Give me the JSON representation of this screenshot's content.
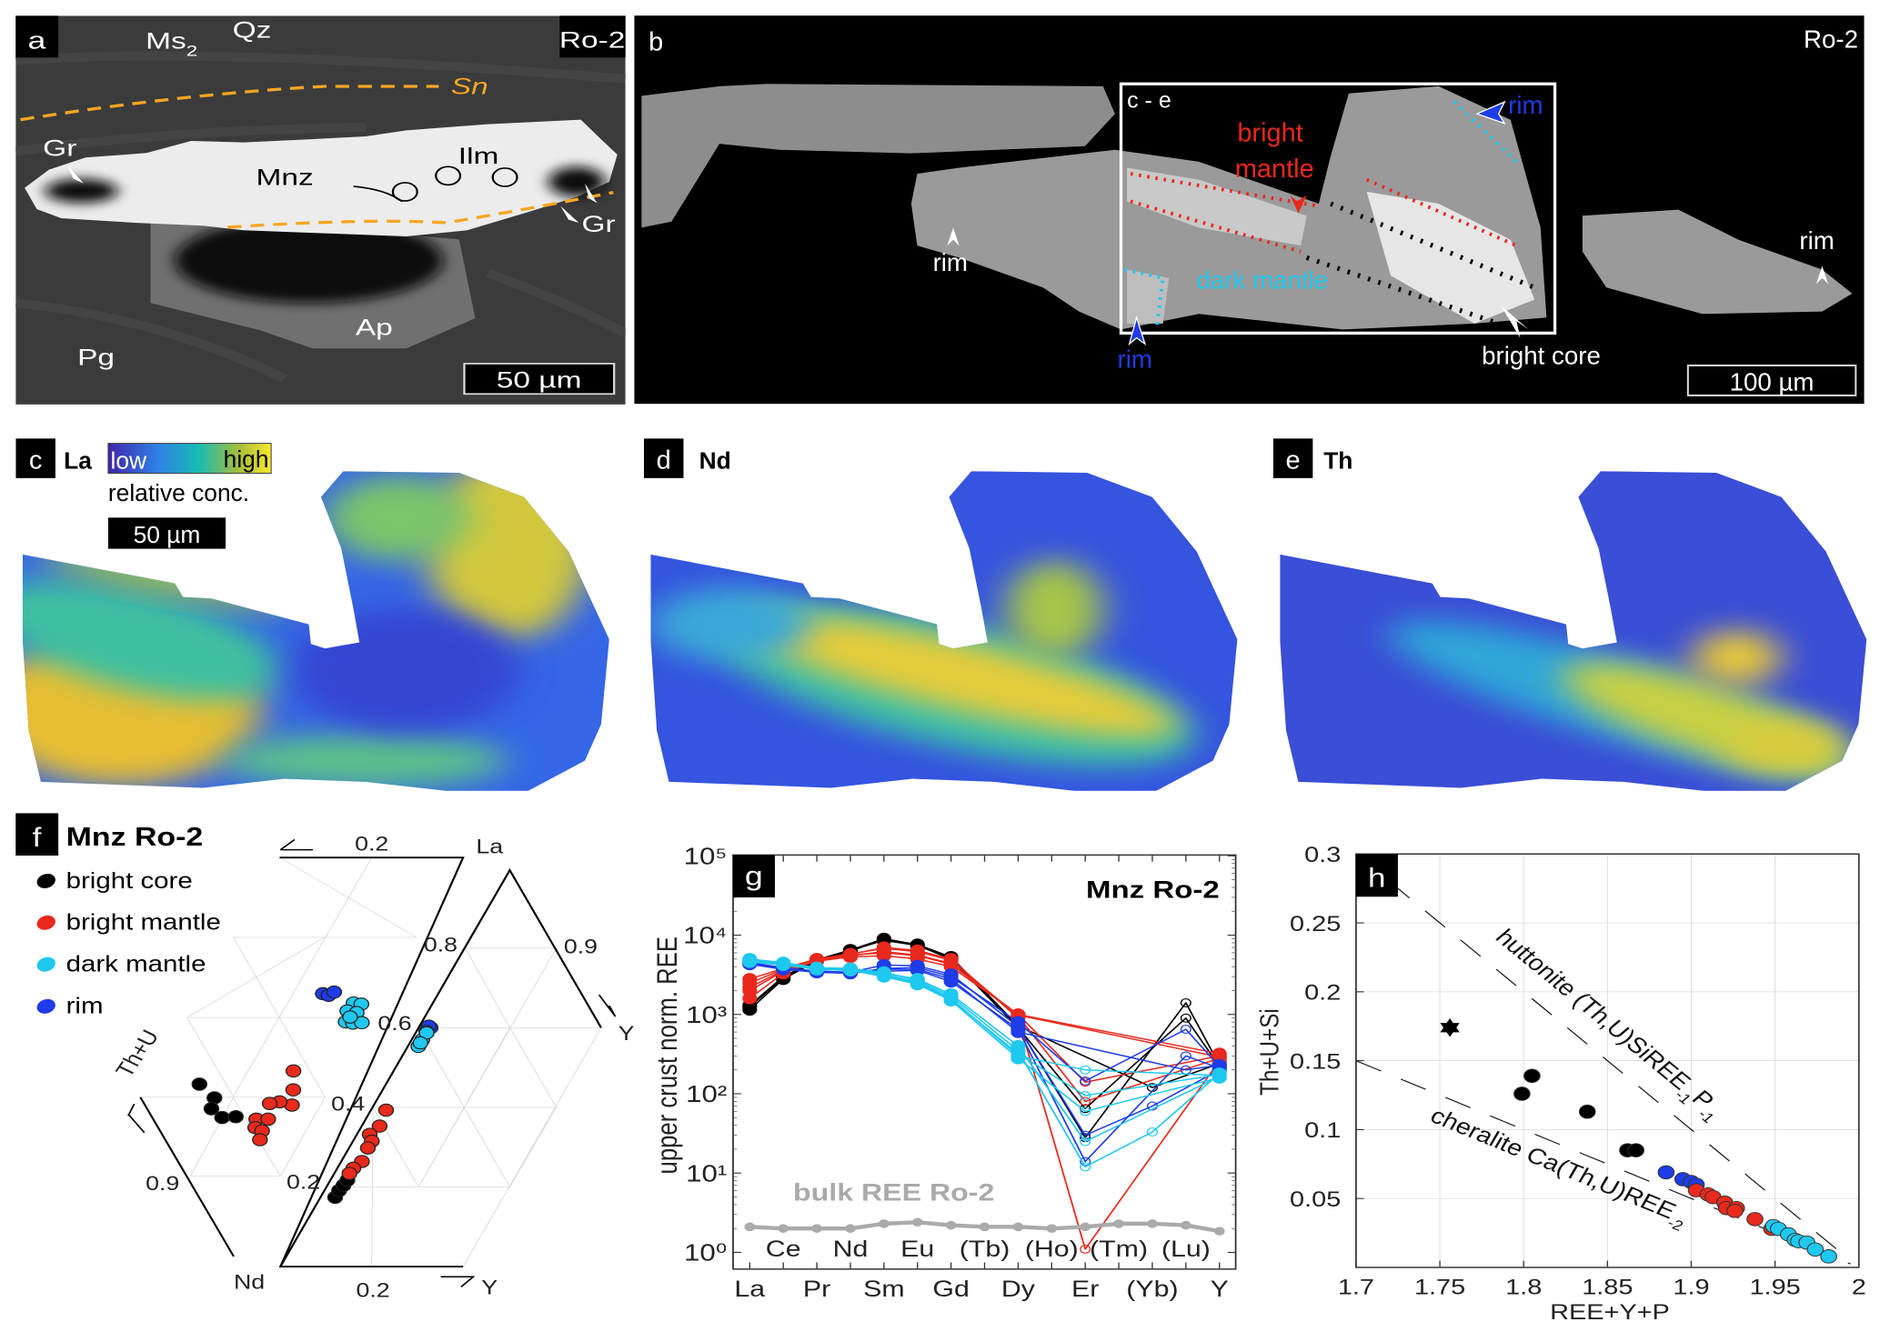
{
  "panel_a": {
    "label": "a",
    "sample": "Ro-2",
    "minerals": {
      "ms": "Ms",
      "ms_sub": "2",
      "qz": "Qz",
      "sn": "Sn",
      "gr_left": "Gr",
      "mnz": "Mnz",
      "ilm": "Ilm",
      "gr_right": "Gr",
      "ap": "Ap",
      "pg": "Pg"
    },
    "scale_bar": "50 µm",
    "colors": {
      "foliation": "#f5a623"
    }
  },
  "panel_b": {
    "label": "b",
    "sample": "Ro-2",
    "inset_label": "c - e",
    "annotations": {
      "bright1": "bright",
      "bright2": "mantle",
      "rim_top": "rim",
      "rim_left": "rim",
      "dark_mantle": "dark mantle",
      "rim_bottom": "rim",
      "bright_core": "bright core",
      "rim_right": "rim"
    },
    "scale_bar": "100 µm",
    "colors": {
      "bright_mantle": "#e8291c",
      "dark_mantle": "#1ec8ef",
      "rim": "#1e3ce8"
    }
  },
  "maps": {
    "c": {
      "label": "c",
      "element": "La"
    },
    "d": {
      "label": "d",
      "element": "Nd"
    },
    "e": {
      "label": "e",
      "element": "Th"
    },
    "colorbar": {
      "low": "low",
      "high": "high",
      "caption": "relative conc."
    },
    "scale_bar": "50 µm"
  },
  "chart_data": [
    {
      "id": "f",
      "type": "scatter",
      "subtype": "ternary",
      "label": "f",
      "title": "Mnz Ro-2",
      "legend": [
        {
          "label": "bright core",
          "color": "#000000"
        },
        {
          "label": "bright mantle",
          "color": "#e8291c"
        },
        {
          "label": "dark mantle",
          "color": "#1ec8ef"
        },
        {
          "label": "rim",
          "color": "#1e3ce8"
        }
      ],
      "axis_labels": {
        "th_u": "Th+U",
        "la": "La",
        "nd": "Nd",
        "y_right": "Y",
        "y_bottom": "Y"
      },
      "tick_labels": {
        "top": "0.2",
        "r08": "0.8",
        "r06": "0.6",
        "r04": "0.4",
        "r02": "0.2",
        "left09": "0.9",
        "right09": "0.9",
        "bottom": "0.2"
      },
      "left_diagram": {
        "apices": [
          "Th+U",
          "La",
          "Nd"
        ],
        "point_fields": [
          "La",
          "Th+U"
        ],
        "groups": {
          "bright core": [
            [
              0.435,
              0.354
            ],
            [
              0.401,
              0.308
            ],
            [
              0.374,
              0.304
            ],
            [
              0.352,
              0.272
            ],
            [
              0.354,
              0.243
            ]
          ],
          "bright mantle": [
            [
              0.468,
              0.162
            ],
            [
              0.421,
              0.144
            ],
            [
              0.383,
              0.132
            ],
            [
              0.391,
              0.162
            ],
            [
              0.387,
              0.182
            ],
            [
              0.348,
              0.196
            ],
            [
              0.348,
              0.17
            ],
            [
              0.327,
              0.19
            ],
            [
              0.319,
              0.172
            ],
            [
              0.297,
              0.168
            ]
          ],
          "rim": [
            [
              0.66,
              0.173
            ],
            [
              0.656,
              0.159
            ],
            [
              0.664,
              0.15
            ]
          ],
          "dark mantle": [
            [
              0.637,
              0.097
            ],
            [
              0.634,
              0.079
            ],
            [
              0.617,
              0.103
            ],
            [
              0.613,
              0.081
            ],
            [
              0.59,
              0.096
            ],
            [
              0.587,
              0.079
            ],
            [
              0.588,
              0.06
            ],
            [
              0.602,
              0.091
            ]
          ]
        }
      },
      "right_diagram": {
        "apices": [
          "La",
          "Nd",
          "Y"
        ],
        "point_fields": [
          "La",
          "Y"
        ],
        "groups": {
          "bright core": [
            [
              0.174,
              0.032
            ],
            [
              0.191,
              0.032
            ],
            [
              0.204,
              0.035
            ],
            [
              0.217,
              0.037
            ]
          ],
          "bright mantle": [
            [
              0.393,
              0.033
            ],
            [
              0.353,
              0.039
            ],
            [
              0.332,
              0.028
            ],
            [
              0.315,
              0.041
            ],
            [
              0.298,
              0.041
            ],
            [
              0.264,
              0.045
            ],
            [
              0.247,
              0.035
            ],
            [
              0.234,
              0.033
            ]
          ],
          "dark mantle": [
            [
              0.553,
              0.023
            ],
            [
              0.57,
              0.023
            ],
            [
              0.587,
              0.024
            ],
            [
              0.562,
              0.023
            ]
          ],
          "rim": [
            [
              0.6,
              0.026
            ],
            [
              0.604,
              0.02
            ],
            [
              0.591,
              0.021
            ]
          ]
        }
      }
    },
    {
      "id": "g",
      "type": "line",
      "label": "g",
      "title": "Mnz Ro-2",
      "ylabel": "upper crust norm. REE",
      "yscale": "log",
      "ylim": [
        0.6,
        100000
      ],
      "categories": [
        "La",
        "Ce",
        "Pr",
        "Nd",
        "Sm",
        "Eu",
        "Gd",
        "Tb",
        "Dy",
        "Ho",
        "Er",
        "Tm",
        "Yb",
        "Lu",
        "Y"
      ],
      "xtick_labels_outer": [
        "La",
        "Pr",
        "Sm",
        "Gd",
        "Dy",
        "Er",
        "(Yb)",
        "Y"
      ],
      "xtick_labels_inner": [
        "Ce",
        "Nd",
        "Eu",
        "(Tb)",
        "(Ho)",
        "(Tm)",
        "(Lu)"
      ],
      "ytick_labels": [
        "10⁰",
        "10¹",
        "10²",
        "10³",
        "10⁴",
        "10⁵"
      ],
      "open_marker_elements": [
        "Er",
        "Tm",
        "Yb",
        "Lu"
      ],
      "bulk_label": "bulk REE Ro-2",
      "series": [
        {
          "group": "bright core",
          "color": "#000000",
          "values": [
            1150,
            2800,
            4700,
            6300,
            8800,
            7500,
            5200,
            null,
            700,
            null,
            28,
            null,
            null,
            1400,
            230
          ]
        },
        {
          "group": "bright core",
          "color": "#000000",
          "values": [
            1250,
            2900,
            4800,
            6400,
            8600,
            7400,
            5000,
            null,
            680,
            null,
            65,
            null,
            null,
            900,
            220
          ]
        },
        {
          "group": "bright core",
          "color": "#000000",
          "values": [
            1300,
            3000,
            4900,
            6500,
            9000,
            7600,
            5300,
            null,
            720,
            null,
            null,
            null,
            120,
            null,
            240
          ]
        },
        {
          "group": "bright mantle",
          "color": "#e8291c",
          "values": [
            1600,
            3300,
            4800,
            5600,
            6000,
            5500,
            4300,
            null,
            1000,
            null,
            140,
            null,
            null,
            null,
            300
          ]
        },
        {
          "group": "bright mantle",
          "color": "#e8291c",
          "values": [
            2200,
            3600,
            5000,
            5800,
            6800,
            6200,
            4800,
            null,
            950,
            null,
            80,
            null,
            null,
            null,
            280
          ]
        },
        {
          "group": "bright mantle",
          "color": "#e8291c",
          "values": [
            2800,
            3800,
            5000,
            5700,
            7000,
            6400,
            5000,
            null,
            900,
            null,
            1.1,
            null,
            null,
            null,
            260
          ]
        },
        {
          "group": "bright mantle",
          "color": "#e8291c",
          "values": [
            2000,
            3500,
            4700,
            5300,
            5500,
            5000,
            4000,
            null,
            1000,
            null,
            null,
            null,
            null,
            null,
            320
          ]
        },
        {
          "group": "bright mantle",
          "color": "#e8291c",
          "values": [
            2500,
            3700,
            4900,
            5500,
            6200,
            5600,
            4400,
            null,
            980,
            null,
            null,
            null,
            null,
            null,
            290
          ]
        },
        {
          "group": "rim",
          "color": "#1e3ce8",
          "values": [
            4400,
            3800,
            3400,
            3300,
            3800,
            3900,
            3000,
            null,
            800,
            null,
            145,
            null,
            null,
            650,
            220
          ]
        },
        {
          "group": "rim",
          "color": "#1e3ce8",
          "values": [
            4500,
            3900,
            3500,
            3400,
            4200,
            4100,
            3200,
            null,
            700,
            null,
            30,
            null,
            70,
            null,
            200
          ]
        },
        {
          "group": "rim",
          "color": "#1e3ce8",
          "values": [
            4300,
            3700,
            3400,
            3350,
            3500,
            3600,
            2600,
            null,
            650,
            null,
            14,
            null,
            null,
            300,
            210
          ]
        },
        {
          "group": "rim",
          "color": "#1e3ce8",
          "values": [
            4600,
            3800,
            3500,
            3400,
            3700,
            3700,
            2800,
            null,
            600,
            null,
            null,
            null,
            null,
            200,
            230
          ]
        },
        {
          "group": "dark mantle",
          "color": "#1ec8ef",
          "values": [
            4800,
            4400,
            3800,
            3700,
            3200,
            2600,
            1600,
            null,
            300,
            null,
            200,
            null,
            null,
            null,
            170
          ]
        },
        {
          "group": "dark mantle",
          "color": "#1ec8ef",
          "values": [
            4700,
            4300,
            3700,
            3600,
            3000,
            2400,
            1500,
            null,
            280,
            null,
            60,
            null,
            null,
            null,
            160
          ]
        },
        {
          "group": "dark mantle",
          "color": "#1ec8ef",
          "values": [
            5000,
            4500,
            3900,
            3800,
            3400,
            2700,
            1700,
            null,
            350,
            null,
            12,
            null,
            33,
            null,
            180
          ]
        },
        {
          "group": "dark mantle",
          "color": "#1ec8ef",
          "values": [
            4600,
            4200,
            3700,
            3600,
            3300,
            2800,
            1800,
            null,
            400,
            null,
            25,
            null,
            null,
            null,
            165
          ]
        },
        {
          "group": "dark mantle",
          "color": "#1ec8ef",
          "values": [
            4900,
            4400,
            3800,
            3700,
            3100,
            2500,
            1550,
            null,
            320,
            null,
            95,
            null,
            null,
            null,
            175
          ]
        },
        {
          "group": "bulk REE Ro-2",
          "color": "#aaaaaa",
          "values": [
            2.1,
            2.0,
            2.0,
            2.0,
            2.3,
            2.4,
            2.2,
            2.1,
            2.1,
            2.0,
            2.1,
            2.3,
            2.3,
            2.2,
            1.85
          ]
        }
      ]
    },
    {
      "id": "h",
      "type": "scatter",
      "label": "h",
      "xlabel": "REE+Y+P",
      "ylabel": "Th+U+Si",
      "xlim": [
        1.7,
        2.0
      ],
      "ylim": [
        0.0,
        0.3
      ],
      "grid": true,
      "xtick_labels": [
        "1.7",
        "1.75",
        "1.8",
        "1.85",
        "1.9",
        "1.95",
        "2"
      ],
      "xticks": [
        1.7,
        1.75,
        1.8,
        1.85,
        1.9,
        1.95,
        2.0
      ],
      "ytick_labels": [
        "0.05",
        "0.1",
        "0.15",
        "0.2",
        "0.25",
        "0.3"
      ],
      "yticks": [
        0.05,
        0.1,
        0.15,
        0.2,
        0.25,
        0.3
      ],
      "reference_lines": [
        {
          "name": "huttonite",
          "text": "huttonite (Th,U)SiREE",
          "sub1": "-1",
          "mid": "P",
          "sub2": "-1",
          "slope": -1,
          "intercept": 2.0,
          "x_range": [
            1.72,
            1.995
          ]
        },
        {
          "name": "cheralite",
          "text": "cheralite Ca(Th,U)REE",
          "sub1": "-2",
          "slope": -0.5,
          "intercept": 1.0,
          "x_range": [
            1.7,
            1.995
          ]
        }
      ],
      "groups": [
        {
          "group": "bright core",
          "color": "#000000",
          "marker": "circle",
          "points": [
            [
              1.799,
              0.126
            ],
            [
              1.805,
              0.139
            ],
            [
              1.838,
              0.113
            ],
            [
              1.862,
              0.085
            ],
            [
              1.867,
              0.085
            ]
          ]
        },
        {
          "group": "bright core",
          "color": "#000000",
          "marker": "star",
          "points": [
            [
              1.756,
              0.174
            ]
          ]
        },
        {
          "group": "rim",
          "color": "#1e3ce8",
          "marker": "circle",
          "points": [
            [
              1.885,
              0.069
            ],
            [
              1.895,
              0.064
            ],
            [
              1.9,
              0.062
            ],
            [
              1.903,
              0.06
            ]
          ]
        },
        {
          "group": "bright mantle",
          "color": "#e8291c",
          "marker": "circle",
          "points": [
            [
              1.903,
              0.056
            ],
            [
              1.91,
              0.053
            ],
            [
              1.913,
              0.051
            ],
            [
              1.92,
              0.047
            ],
            [
              1.921,
              0.043
            ],
            [
              1.927,
              0.043
            ],
            [
              1.926,
              0.041
            ],
            [
              1.938,
              0.035
            ],
            [
              1.948,
              0.028
            ]
          ]
        },
        {
          "group": "dark mantle",
          "color": "#1ec8ef",
          "marker": "circle",
          "points": [
            [
              1.949,
              0.03
            ],
            [
              1.952,
              0.028
            ],
            [
              1.958,
              0.024
            ],
            [
              1.962,
              0.02
            ],
            [
              1.964,
              0.019
            ],
            [
              1.969,
              0.018
            ],
            [
              1.974,
              0.013
            ],
            [
              1.982,
              0.008
            ]
          ]
        }
      ]
    }
  ]
}
